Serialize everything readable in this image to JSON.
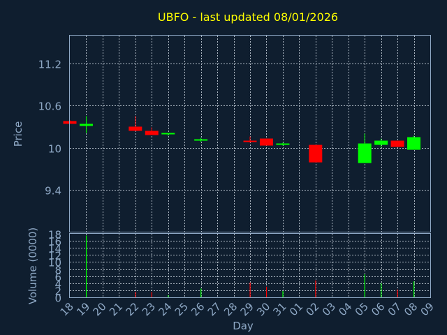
{
  "chart_data": {
    "type": "candlestick",
    "title": "UBFO - last updated 08/01/2026",
    "xlabel": "Day",
    "price_ylabel": "Price",
    "volume_ylabel": "Volume (0000)",
    "categories": [
      "18",
      "19",
      "20",
      "21",
      "22",
      "23",
      "24",
      "25",
      "26",
      "27",
      "28",
      "29",
      "30",
      "31",
      "01",
      "02",
      "03",
      "04",
      "05",
      "06",
      "07",
      "08",
      "09"
    ],
    "price_ylim": [
      8.8,
      11.6
    ],
    "price_ticks": [
      "9.4",
      "10",
      "10.6",
      "11.2"
    ],
    "volume_ylim": [
      0,
      18
    ],
    "volume_ticks": [
      "0",
      "2",
      "4",
      "6",
      "8",
      "10",
      "12",
      "14",
      "16",
      "18"
    ],
    "grid": true,
    "colors": {
      "up": "#00ff00",
      "down": "#ff0000",
      "background": "#0f1e2f",
      "title": "#ffff00",
      "axis": "#8fa9c6"
    },
    "series": [
      {
        "x": "18",
        "open": 10.38,
        "high": 10.39,
        "low": 10.34,
        "close": 10.34,
        "volume": 0
      },
      {
        "x": "19",
        "open": 10.31,
        "high": 10.45,
        "low": 10.21,
        "close": 10.34,
        "volume": 17.5
      },
      {
        "x": "22",
        "open": 10.3,
        "high": 10.45,
        "low": 10.24,
        "close": 10.24,
        "volume": 1.5
      },
      {
        "x": "23",
        "open": 10.24,
        "high": 10.29,
        "low": 10.18,
        "close": 10.18,
        "volume": 1.5
      },
      {
        "x": "24",
        "open": 10.19,
        "high": 10.21,
        "low": 10.17,
        "close": 10.21,
        "volume": 0.6
      },
      {
        "x": "26",
        "open": 10.11,
        "high": 10.14,
        "low": 10.08,
        "close": 10.12,
        "volume": 2.5
      },
      {
        "x": "29",
        "open": 10.1,
        "high": 10.16,
        "low": 10.07,
        "close": 10.09,
        "volume": 4.2
      },
      {
        "x": "30",
        "open": 10.13,
        "high": 10.13,
        "low": 10.03,
        "close": 10.03,
        "volume": 3.0
      },
      {
        "x": "31",
        "open": 10.04,
        "high": 10.07,
        "low": 10.03,
        "close": 10.06,
        "volume": 1.8
      },
      {
        "x": "02",
        "open": 10.04,
        "high": 10.04,
        "low": 9.79,
        "close": 9.79,
        "volume": 4.8
      },
      {
        "x": "05",
        "open": 9.78,
        "high": 10.2,
        "low": 9.78,
        "close": 10.06,
        "volume": 6.5
      },
      {
        "x": "06",
        "open": 10.04,
        "high": 10.13,
        "low": 10.0,
        "close": 10.1,
        "volume": 4.0
      },
      {
        "x": "07",
        "open": 10.1,
        "high": 10.1,
        "low": 10.01,
        "close": 10.01,
        "volume": 2.2
      },
      {
        "x": "08",
        "open": 9.97,
        "high": 10.17,
        "low": 9.97,
        "close": 10.15,
        "volume": 4.5
      }
    ]
  }
}
